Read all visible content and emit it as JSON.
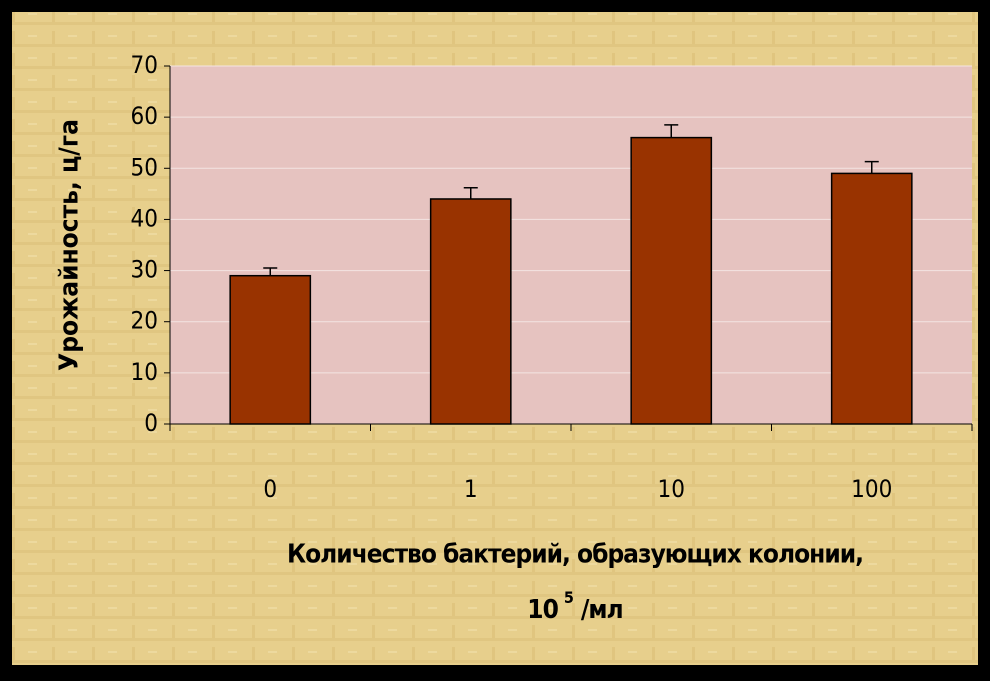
{
  "chart_data": {
    "type": "bar",
    "y_label": "Урожайность, ц/га",
    "x_label": {
      "line1": "Количество бактерий, образующих колонии,",
      "base": "10",
      "exponent": "5",
      "unit": "/мл"
    },
    "categories": [
      "0",
      "1",
      "10",
      "100"
    ],
    "values": [
      29,
      44,
      56,
      49
    ],
    "errors": [
      1.5,
      2.2,
      2.5,
      2.3
    ],
    "color": "#993300",
    "ylim": [
      0,
      70
    ],
    "yticks": [
      0,
      10,
      20,
      30,
      40,
      50,
      60,
      70
    ],
    "grid": true
  }
}
